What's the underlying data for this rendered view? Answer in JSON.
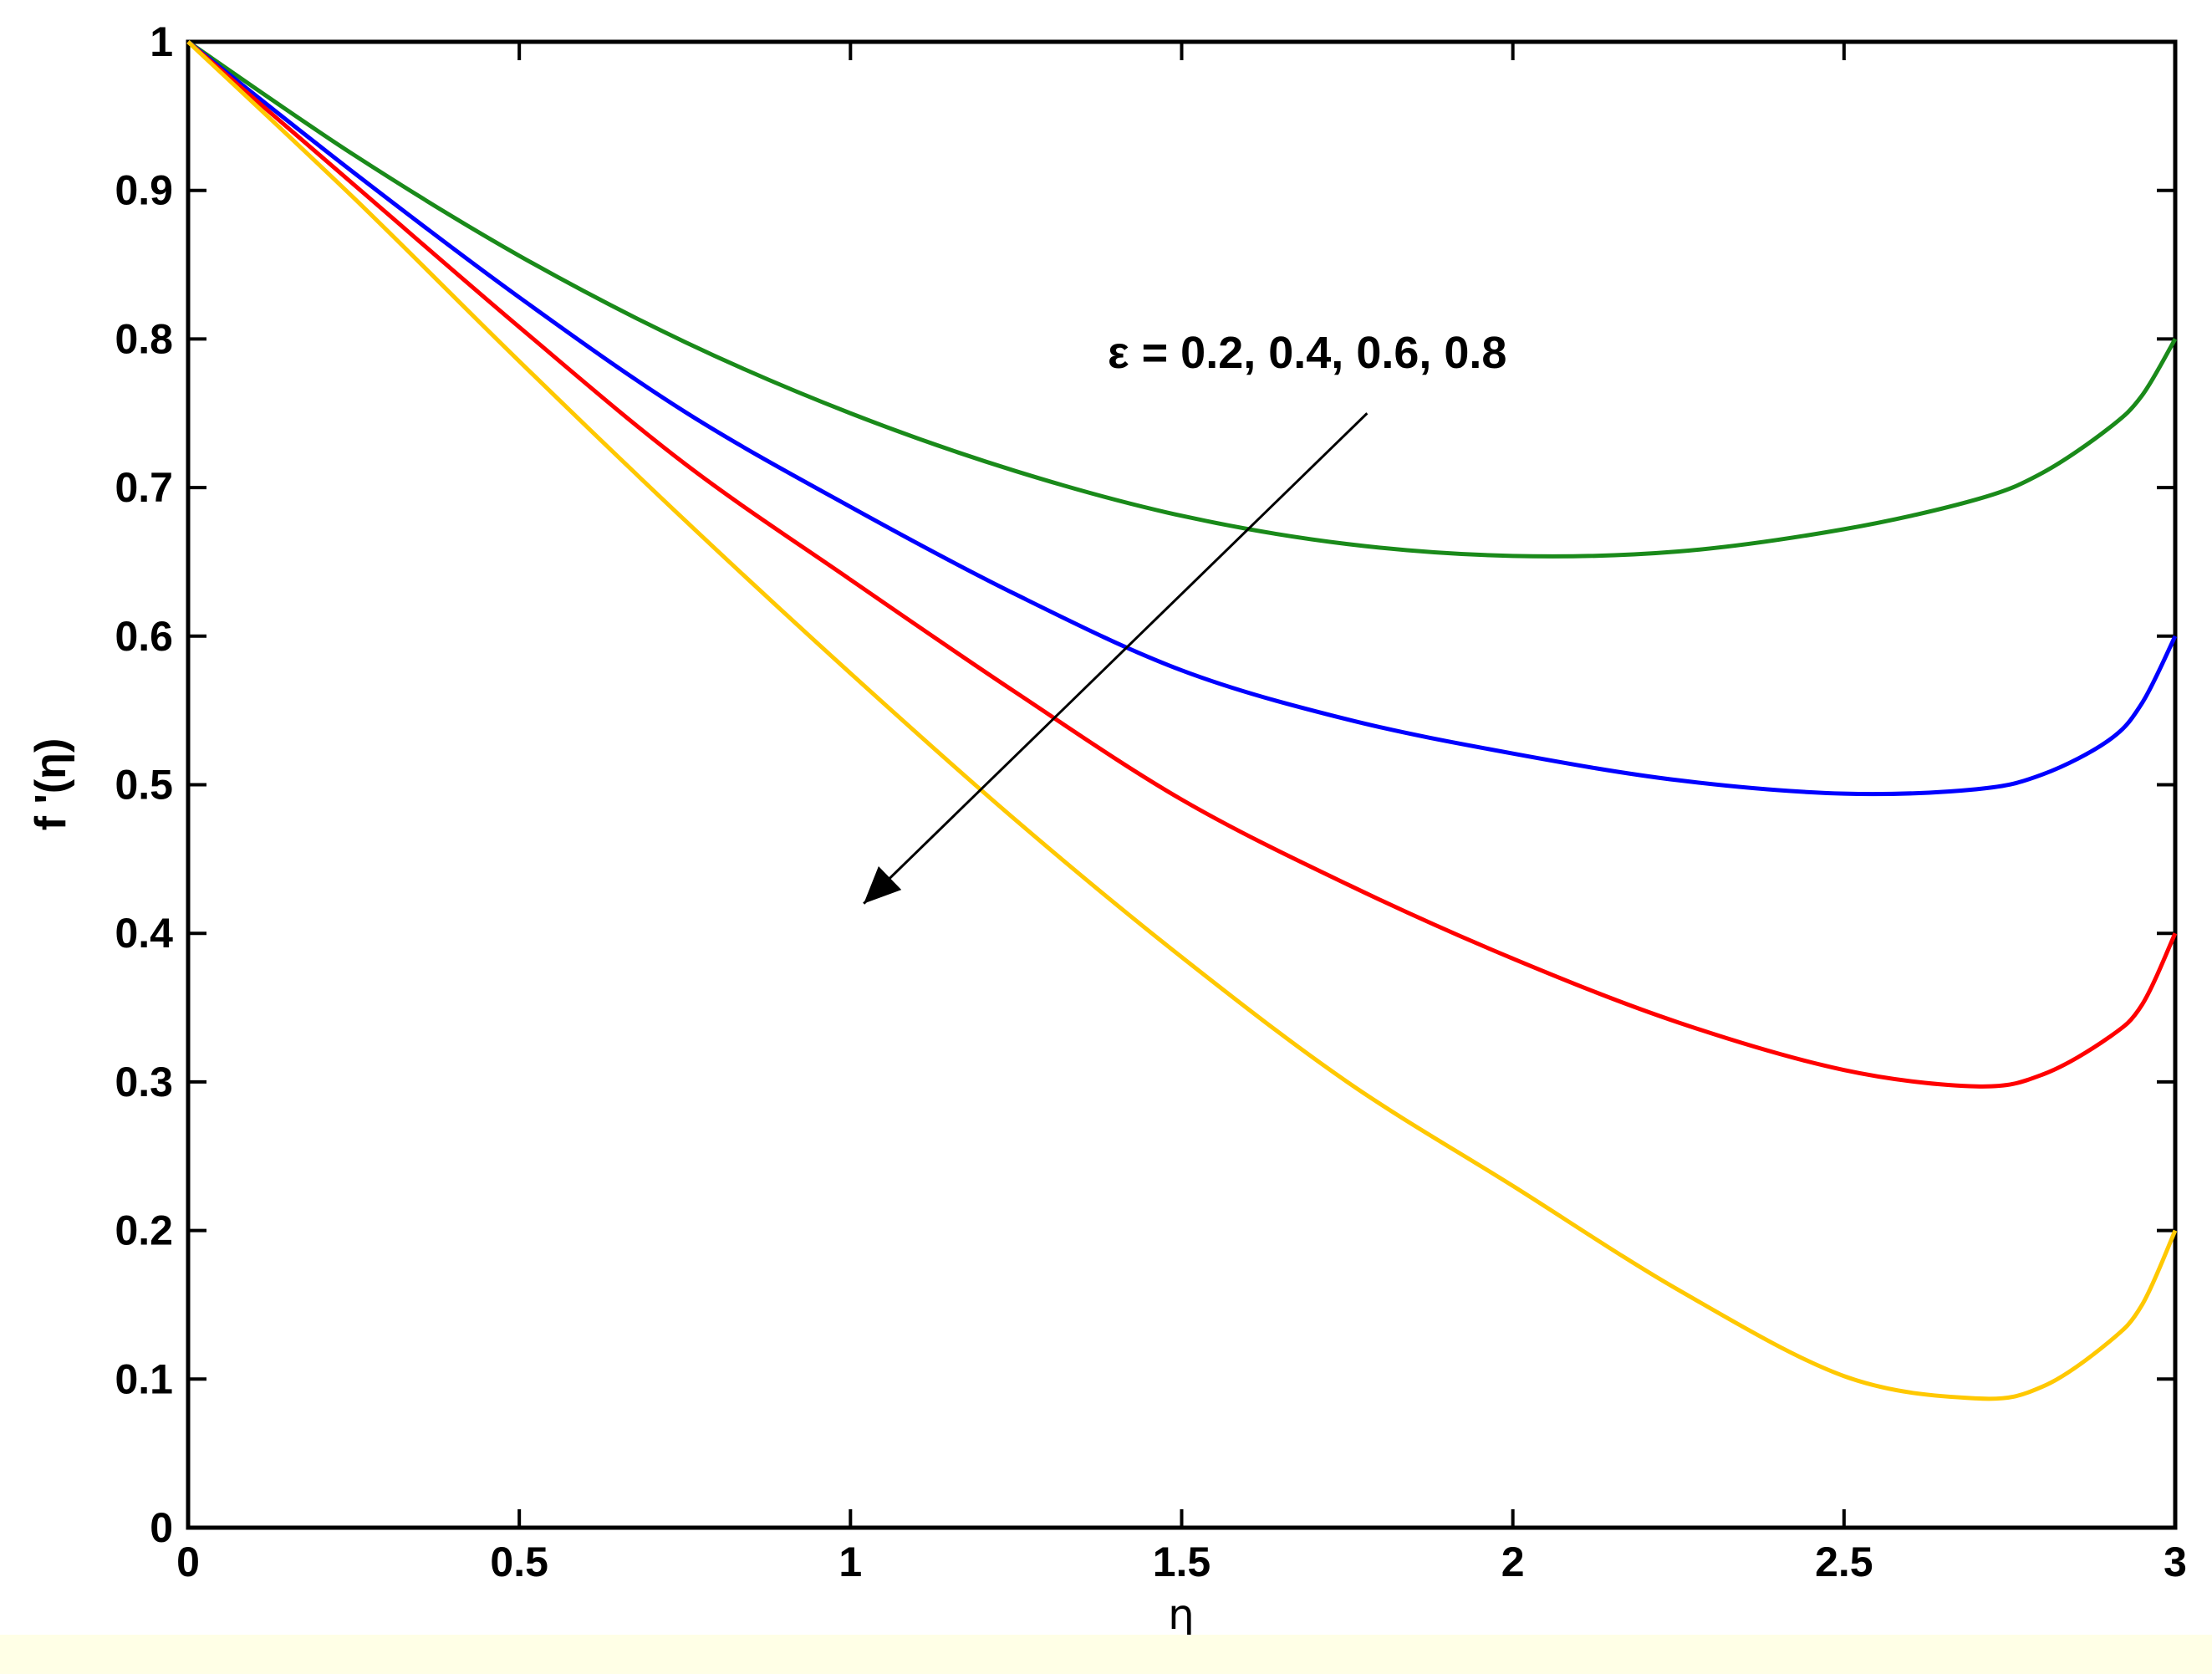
{
  "chart_data": {
    "type": "line",
    "title": "",
    "xlabel": "η",
    "ylabel": "f '(η)",
    "xlim": [
      0,
      3
    ],
    "ylim": [
      0,
      1
    ],
    "grid": false,
    "x_ticks": [
      "0",
      "0.5",
      "1",
      "1.5",
      "2",
      "2.5",
      "3"
    ],
    "y_ticks": [
      "0",
      "0.1",
      "0.2",
      "0.3",
      "0.4",
      "0.5",
      "0.6",
      "0.7",
      "0.8",
      "0.9",
      "1"
    ],
    "annotation": {
      "text": "ε = 0.2, 0.4, 0.6, 0.8",
      "arrow_from": [
        1.78,
        0.75
      ],
      "arrow_to": [
        1.02,
        0.42
      ]
    },
    "x": [
      0,
      0.25,
      0.5,
      0.75,
      1,
      1.25,
      1.5,
      1.75,
      2,
      2.25,
      2.5,
      2.7,
      2.8,
      2.9,
      2.95,
      3
    ],
    "series": [
      {
        "color": "#1a8a1a",
        "values": [
          1.0,
          0.924,
          0.856,
          0.798,
          0.75,
          0.711,
          0.681,
          0.662,
          0.654,
          0.657,
          0.672,
          0.692,
          0.71,
          0.74,
          0.762,
          0.8
        ]
      },
      {
        "color": "#0000ff",
        "values": [
          1.0,
          0.912,
          0.828,
          0.751,
          0.687,
          0.628,
          0.577,
          0.544,
          0.521,
          0.503,
          0.494,
          0.497,
          0.507,
          0.53,
          0.555,
          0.6
        ]
      },
      {
        "color": "#ff0000",
        "values": [
          1.0,
          0.904,
          0.808,
          0.716,
          0.638,
          0.562,
          0.49,
          0.433,
          0.383,
          0.34,
          0.308,
          0.297,
          0.305,
          0.33,
          0.352,
          0.4
        ]
      },
      {
        "color": "#ffc800",
        "values": [
          1.0,
          0.895,
          0.785,
          0.678,
          0.575,
          0.476,
          0.384,
          0.3,
          0.23,
          0.16,
          0.102,
          0.087,
          0.095,
          0.125,
          0.15,
          0.2
        ]
      }
    ]
  }
}
